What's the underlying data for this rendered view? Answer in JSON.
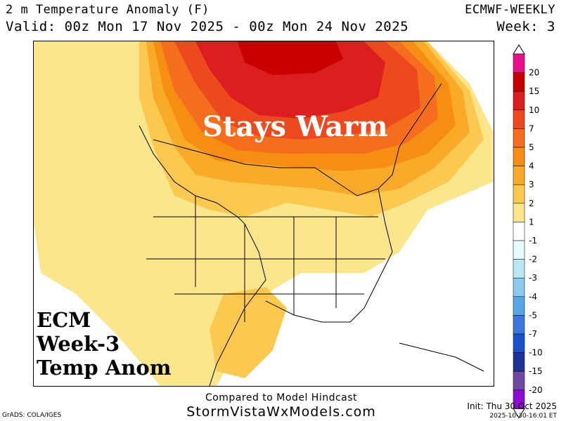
{
  "header": {
    "title": "2 m Temperature Anomaly (F)",
    "valid": "Valid: 00z Mon 17 Nov 2025 - 00z Mon 24 Nov 2025",
    "model": "ECMWF-WEEKLY",
    "week": "Week: 3"
  },
  "map": {
    "overlay_title": "Stays Warm",
    "corner_label": [
      "ECM",
      "Week-3",
      "Temp Anom"
    ]
  },
  "colorbar": {
    "levels": [
      "20",
      "15",
      "10",
      "7",
      "5",
      "4",
      "3",
      "2",
      "1",
      "-1",
      "-2",
      "-3",
      "-4",
      "-5",
      "-7",
      "-10",
      "-15",
      "-20"
    ],
    "colors": [
      "#e8108c",
      "#c80000",
      "#dc1e1e",
      "#ec4a1e",
      "#f56e1e",
      "#f78e14",
      "#f8aa28",
      "#fbc850",
      "#fbe68c",
      "#ffffff",
      "#e6fafa",
      "#bde6f5",
      "#8cc8f0",
      "#5aa5e6",
      "#3c78dc",
      "#1e50c8",
      "#1e3296",
      "#6e4ba0",
      "#8c0ad2"
    ]
  },
  "footer": {
    "compared": "Compared to Model Hindcast",
    "site": "StormVistaWxModels.com",
    "grads": "GrADS: COLA/IGES",
    "init": "Init: Thu 30 Oct 2025",
    "timestamp": "2025-10-30-16:01 ET"
  }
}
